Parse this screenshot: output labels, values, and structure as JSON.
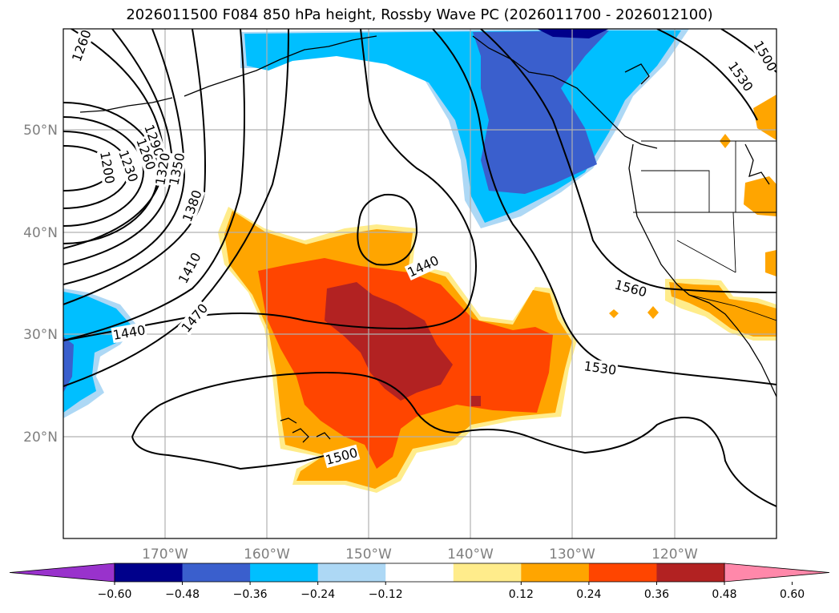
{
  "title": "2026011500 F084 850 hPa height, Rossby Wave PC (2026011700 - 2026012100)",
  "map": {
    "lon_range": [
      -180,
      -110
    ],
    "lat_range": [
      10,
      60
    ],
    "lat_ticks": [
      "50°N",
      "40°N",
      "30°N",
      "20°N"
    ],
    "lon_ticks": [
      "170°W",
      "160°W",
      "150°W",
      "140°W",
      "130°W",
      "120°W"
    ],
    "gridlines": true,
    "coastlines": true,
    "state_borders": true
  },
  "contour_labels": [
    "1260",
    "1290",
    "1260",
    "1230",
    "1200",
    "1320",
    "1350",
    "1380",
    "1410",
    "1440",
    "1470",
    "1440",
    "1500",
    "1530",
    "1560",
    "1530",
    "1500"
  ],
  "colorbar": {
    "ticks": [
      "−0.60",
      "−0.48",
      "−0.36",
      "−0.24",
      "−0.12",
      "0.12",
      "0.24",
      "0.36",
      "0.48",
      "0.60"
    ],
    "colors": [
      "#9932cc",
      "#00008b",
      "#3a5fcd",
      "#00bfff",
      "#add8f5",
      "#ffffff",
      "#ffec8b",
      "#ffa500",
      "#ff4500",
      "#b22222",
      "#ff88aa"
    ]
  }
}
